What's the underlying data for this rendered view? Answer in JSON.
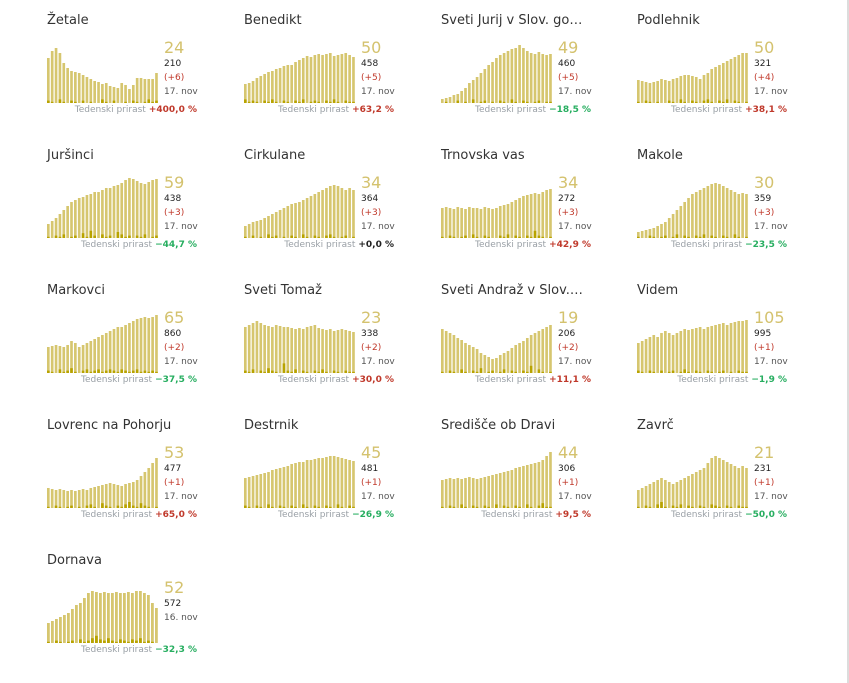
{
  "colors": {
    "bar": "#d6c66f",
    "bar_dark": "#b8a300",
    "big_number": "#d4c26e",
    "increase": "#c0392b",
    "decrease": "#27ae60",
    "neutral": "#222222"
  },
  "growth_label": "Tedenski prirast",
  "chart_data": [
    {
      "type": "bar",
      "title": "Žetale",
      "stats": {
        "value": "24",
        "total": "210",
        "delta": "(+6)",
        "date": "17. nov",
        "growth": "+400,0 %",
        "trend": "up"
      },
      "values": [
        45,
        52,
        55,
        50,
        40,
        35,
        32,
        31,
        30,
        28,
        26,
        24,
        22,
        21,
        19,
        20,
        17,
        16,
        15,
        20,
        18,
        14,
        18,
        25,
        25,
        24,
        24,
        24,
        30
      ],
      "new": [
        2,
        1,
        0,
        3,
        1,
        0,
        2,
        1,
        0,
        2,
        0,
        1,
        0,
        0,
        3,
        1,
        0,
        2,
        0,
        0,
        1,
        0,
        2,
        1,
        0,
        1,
        3,
        1,
        2
      ]
    },
    {
      "type": "bar",
      "title": "Benedikt",
      "stats": {
        "value": "50",
        "total": "458",
        "delta": "(+5)",
        "date": "17. nov",
        "growth": "+63,2 %",
        "trend": "up"
      },
      "values": [
        19,
        20,
        22,
        25,
        27,
        29,
        31,
        32,
        34,
        35,
        37,
        38,
        38,
        41,
        43,
        45,
        47,
        46,
        48,
        49,
        48,
        49,
        50,
        47,
        48,
        49,
        50,
        48,
        46
      ],
      "new": [
        3,
        1,
        2,
        1,
        0,
        2,
        1,
        3,
        1,
        0,
        2,
        1,
        0,
        2,
        1,
        3,
        0,
        1,
        2,
        1,
        0,
        2,
        1,
        3,
        1,
        0,
        2,
        1,
        1
      ]
    },
    {
      "type": "bar",
      "title": "Sveti Jurij v Slov. go…",
      "stats": {
        "value": "49",
        "total": "460",
        "delta": "(+5)",
        "date": "17. nov",
        "growth": "−18,5 %",
        "trend": "down"
      },
      "values": [
        4,
        5,
        6,
        8,
        9,
        12,
        15,
        20,
        23,
        26,
        30,
        34,
        38,
        41,
        45,
        48,
        50,
        52,
        54,
        55,
        58,
        55,
        52,
        50,
        49,
        51,
        49,
        48,
        49
      ],
      "new": [
        0,
        1,
        0,
        0,
        2,
        0,
        1,
        0,
        3,
        0,
        1,
        2,
        0,
        1,
        0,
        2,
        1,
        0,
        3,
        1,
        0,
        2,
        1,
        0,
        1,
        2,
        0,
        1,
        1
      ]
    },
    {
      "type": "bar",
      "title": "Podlehnik",
      "stats": {
        "value": "50",
        "total": "321",
        "delta": "(+4)",
        "date": "17. nov",
        "growth": "+38,1 %",
        "trend": "up"
      },
      "values": [
        23,
        22,
        21,
        20,
        21,
        22,
        24,
        23,
        22,
        24,
        25,
        27,
        28,
        28,
        27,
        26,
        24,
        28,
        30,
        34,
        36,
        38,
        40,
        42,
        44,
        46,
        48,
        50,
        50
      ],
      "new": [
        1,
        0,
        2,
        1,
        0,
        1,
        0,
        0,
        2,
        1,
        0,
        3,
        1,
        0,
        2,
        1,
        0,
        2,
        3,
        1,
        0,
        2,
        1,
        3,
        0,
        2,
        1,
        0,
        1
      ]
    },
    {
      "type": "bar",
      "title": "Juršinci",
      "stats": {
        "value": "59",
        "total": "438",
        "delta": "(+3)",
        "date": "17. nov",
        "growth": "−44,7 %",
        "trend": "down"
      },
      "values": [
        14,
        17,
        20,
        24,
        28,
        32,
        36,
        38,
        40,
        41,
        43,
        44,
        46,
        46,
        48,
        50,
        50,
        52,
        53,
        55,
        58,
        60,
        59,
        57,
        55,
        54,
        56,
        58,
        59
      ],
      "new": [
        1,
        0,
        2,
        1,
        3,
        0,
        1,
        2,
        0,
        4,
        1,
        6,
        2,
        0,
        3,
        1,
        2,
        0,
        5,
        3,
        1,
        2,
        0,
        2,
        1,
        3,
        0,
        1,
        2
      ]
    },
    {
      "type": "bar",
      "title": "Cirkulane",
      "stats": {
        "value": "34",
        "total": "364",
        "delta": "(+3)",
        "date": "17. nov",
        "growth": "+0,0 %",
        "trend": "flat"
      },
      "values": [
        12,
        14,
        16,
        17,
        18,
        20,
        22,
        24,
        26,
        28,
        30,
        32,
        34,
        35,
        36,
        38,
        40,
        42,
        44,
        46,
        48,
        50,
        52,
        53,
        52,
        50,
        48,
        50,
        48
      ],
      "new": [
        1,
        0,
        2,
        0,
        1,
        0,
        3,
        1,
        2,
        0,
        1,
        0,
        2,
        1,
        0,
        3,
        1,
        0,
        2,
        1,
        0,
        2,
        3,
        1,
        0,
        1,
        2,
        0,
        1
      ]
    },
    {
      "type": "bar",
      "title": "Trnovska vas",
      "stats": {
        "value": "34",
        "total": "272",
        "delta": "(+3)",
        "date": "17. nov",
        "growth": "+42,9 %",
        "trend": "up"
      },
      "values": [
        30,
        31,
        30,
        29,
        31,
        30,
        29,
        31,
        30,
        30,
        29,
        31,
        30,
        29,
        30,
        32,
        33,
        34,
        36,
        38,
        40,
        42,
        43,
        44,
        45,
        44,
        46,
        48,
        49
      ],
      "new": [
        1,
        0,
        2,
        1,
        0,
        1,
        2,
        0,
        3,
        1,
        0,
        2,
        1,
        0,
        0,
        2,
        1,
        3,
        0,
        2,
        1,
        0,
        2,
        1,
        6,
        2,
        1,
        0,
        1
      ]
    },
    {
      "type": "bar",
      "title": "Makole",
      "stats": {
        "value": "30",
        "total": "359",
        "delta": "(+3)",
        "date": "17. nov",
        "growth": "−23,5 %",
        "trend": "down"
      },
      "values": [
        6,
        7,
        8,
        9,
        10,
        12,
        14,
        16,
        20,
        24,
        28,
        32,
        36,
        40,
        44,
        46,
        48,
        50,
        52,
        54,
        55,
        54,
        52,
        50,
        48,
        46,
        44,
        45,
        44
      ],
      "new": [
        1,
        0,
        0,
        2,
        1,
        0,
        1,
        2,
        0,
        1,
        3,
        0,
        2,
        1,
        0,
        2,
        1,
        3,
        0,
        2,
        1,
        0,
        2,
        1,
        0,
        3,
        1,
        0,
        1
      ]
    },
    {
      "type": "bar",
      "title": "Markovci",
      "stats": {
        "value": "65",
        "total": "860",
        "delta": "(+2)",
        "date": "17. nov",
        "growth": "−37,5 %",
        "trend": "down"
      },
      "values": [
        26,
        27,
        28,
        27,
        26,
        28,
        32,
        30,
        26,
        28,
        30,
        32,
        34,
        36,
        38,
        40,
        42,
        44,
        46,
        46,
        48,
        50,
        52,
        54,
        55,
        56,
        55,
        56,
        58
      ],
      "new": [
        2,
        1,
        0,
        3,
        1,
        2,
        4,
        1,
        0,
        2,
        3,
        1,
        2,
        3,
        1,
        2,
        3,
        2,
        1,
        3,
        2,
        1,
        2,
        3,
        1,
        2,
        1,
        2,
        1
      ]
    },
    {
      "type": "bar",
      "title": "Sveti Tomaž",
      "stats": {
        "value": "23",
        "total": "338",
        "delta": "(+2)",
        "date": "17. nov",
        "growth": "+30,0 %",
        "trend": "up"
      },
      "values": [
        46,
        48,
        50,
        52,
        50,
        48,
        47,
        46,
        48,
        47,
        46,
        46,
        45,
        44,
        45,
        44,
        46,
        47,
        48,
        45,
        44,
        43,
        44,
        42,
        43,
        44,
        43,
        42,
        41
      ],
      "new": [
        2,
        1,
        3,
        0,
        2,
        1,
        4,
        2,
        1,
        0,
        8,
        2,
        1,
        3,
        0,
        2,
        1,
        0,
        2,
        1,
        3,
        1,
        0,
        2,
        1,
        0,
        2,
        1,
        1
      ]
    },
    {
      "type": "bar",
      "title": "Sveti Andraž v Slov.…",
      "stats": {
        "value": "19",
        "total": "206",
        "delta": "(+2)",
        "date": "17. nov",
        "growth": "+11,1 %",
        "trend": "up"
      },
      "values": [
        44,
        42,
        40,
        38,
        35,
        33,
        30,
        28,
        26,
        24,
        20,
        18,
        16,
        14,
        15,
        18,
        20,
        22,
        25,
        28,
        30,
        32,
        35,
        38,
        40,
        42,
        44,
        46,
        48
      ],
      "new": [
        1,
        0,
        2,
        1,
        0,
        3,
        1,
        0,
        2,
        1,
        4,
        0,
        1,
        2,
        0,
        1,
        3,
        0,
        2,
        1,
        0,
        2,
        1,
        6,
        0,
        3,
        1,
        0,
        1
      ]
    },
    {
      "type": "bar",
      "title": "Videm",
      "stats": {
        "value": "105",
        "total": "995",
        "delta": "(+1)",
        "date": "17. nov",
        "growth": "−1,9 %",
        "trend": "down"
      },
      "values": [
        30,
        32,
        34,
        36,
        38,
        36,
        40,
        42,
        40,
        38,
        40,
        42,
        44,
        43,
        44,
        45,
        46,
        44,
        46,
        47,
        48,
        49,
        50,
        48,
        50,
        51,
        52,
        52,
        53
      ],
      "new": [
        2,
        1,
        0,
        2,
        1,
        0,
        2,
        0,
        1,
        2,
        0,
        1,
        3,
        1,
        0,
        2,
        1,
        0,
        2,
        1,
        0,
        1,
        2,
        0,
        1,
        0,
        2,
        1,
        1
      ]
    },
    {
      "type": "bar",
      "title": "Lovrenc na Pohorju",
      "stats": {
        "value": "53",
        "total": "477",
        "delta": "(+1)",
        "date": "17. nov",
        "growth": "+65,0 %",
        "trend": "up"
      },
      "values": [
        20,
        19,
        18,
        19,
        18,
        17,
        18,
        17,
        18,
        19,
        18,
        20,
        21,
        22,
        23,
        24,
        25,
        24,
        23,
        22,
        24,
        25,
        26,
        28,
        32,
        36,
        40,
        45,
        50
      ],
      "new": [
        1,
        0,
        2,
        1,
        0,
        1,
        2,
        0,
        1,
        0,
        2,
        3,
        1,
        0,
        4,
        2,
        1,
        0,
        2,
        1,
        3,
        5,
        2,
        1,
        4,
        2,
        1,
        0,
        1
      ]
    },
    {
      "type": "bar",
      "title": "Destrnik",
      "stats": {
        "value": "45",
        "total": "481",
        "delta": "(+1)",
        "date": "17. nov",
        "growth": "−26,9 %",
        "trend": "down"
      },
      "values": [
        30,
        31,
        32,
        33,
        34,
        35,
        36,
        38,
        39,
        40,
        41,
        42,
        44,
        45,
        46,
        46,
        48,
        48,
        49,
        50,
        50,
        51,
        52,
        52,
        51,
        50,
        49,
        48,
        47
      ],
      "new": [
        2,
        1,
        0,
        2,
        1,
        0,
        3,
        1,
        0,
        2,
        1,
        0,
        2,
        1,
        0,
        3,
        1,
        0,
        2,
        1,
        0,
        2,
        1,
        0,
        3,
        1,
        0,
        2,
        1
      ]
    },
    {
      "type": "bar",
      "title": "Središče ob Dravi",
      "stats": {
        "value": "44",
        "total": "306",
        "delta": "(+1)",
        "date": "17. nov",
        "growth": "+9,5 %",
        "trend": "up"
      },
      "values": [
        28,
        29,
        30,
        29,
        30,
        29,
        30,
        31,
        30,
        29,
        30,
        31,
        32,
        33,
        34,
        35,
        36,
        37,
        38,
        40,
        41,
        42,
        43,
        44,
        45,
        46,
        48,
        52,
        56
      ],
      "new": [
        1,
        0,
        2,
        1,
        0,
        3,
        1,
        0,
        2,
        1,
        0,
        2,
        1,
        0,
        3,
        0,
        2,
        1,
        0,
        2,
        1,
        0,
        3,
        1,
        0,
        2,
        4,
        1,
        1
      ]
    },
    {
      "type": "bar",
      "title": "Zavrč",
      "stats": {
        "value": "21",
        "total": "231",
        "delta": "(+1)",
        "date": "17. nov",
        "growth": "−50,0 %",
        "trend": "down"
      },
      "values": [
        18,
        20,
        22,
        24,
        26,
        28,
        30,
        28,
        26,
        24,
        26,
        28,
        30,
        32,
        34,
        36,
        38,
        40,
        45,
        50,
        52,
        50,
        48,
        46,
        44,
        42,
        40,
        42,
        40
      ],
      "new": [
        1,
        0,
        2,
        1,
        0,
        3,
        5,
        1,
        0,
        2,
        1,
        3,
        0,
        2,
        1,
        0,
        2,
        1,
        0,
        3,
        2,
        1,
        0,
        2,
        1,
        0,
        2,
        1,
        1
      ]
    },
    {
      "type": "bar",
      "title": "Dornava",
      "stats": {
        "value": "52",
        "total": "572",
        "delta": "",
        "date": "16. nov",
        "growth": "−32,3 %",
        "trend": "down"
      },
      "values": [
        20,
        22,
        24,
        26,
        28,
        30,
        34,
        38,
        40,
        45,
        50,
        52,
        51,
        50,
        51,
        50,
        50,
        51,
        50,
        50,
        51,
        50,
        52,
        52,
        50,
        48,
        40,
        35
      ],
      "new": [
        1,
        0,
        2,
        1,
        0,
        1,
        2,
        0,
        3,
        1,
        2,
        4,
        6,
        3,
        2,
        4,
        2,
        1,
        3,
        2,
        1,
        3,
        2,
        4,
        1,
        2,
        1,
        0
      ]
    }
  ]
}
